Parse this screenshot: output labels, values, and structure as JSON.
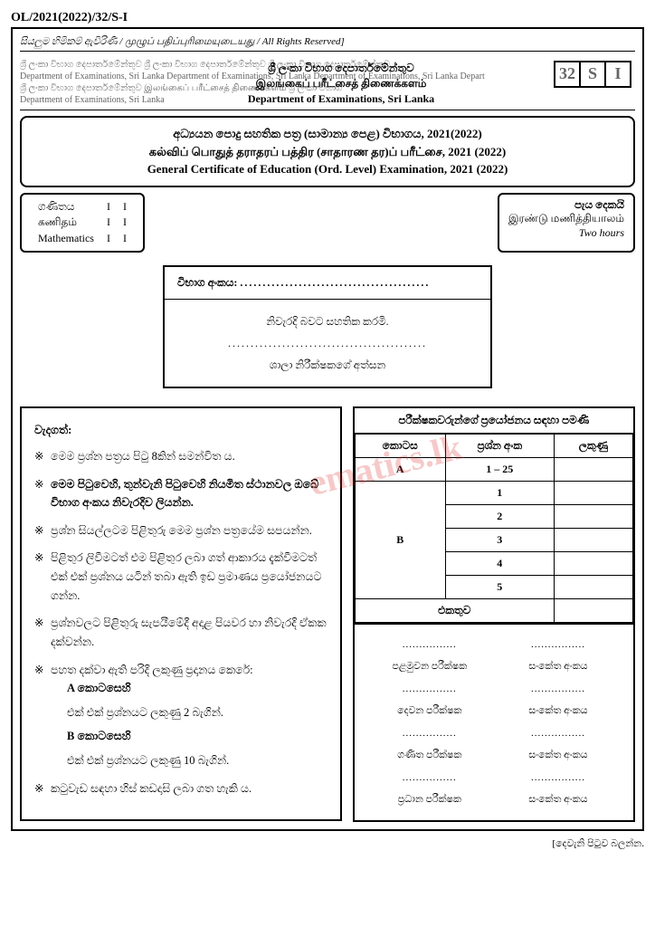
{
  "paper_code": "OL/2021(2022)/32/S-I",
  "rights": "සියලුම හිමිකම් ඇවිරිණි / முழுப் பதிப்புரிமையுடையது / All Rights Reserved]",
  "dept_bg": "ශ්‍රී ලංකා විභාග දෙපාර්තමේන්තුව ශ්‍රී ලංකා විභාග දෙපාර්තමේන්තුව ශ්‍රී ලංකා විභාග දෙපාර්තමේන්තුව\nDepartment of Examinations, Sri Lanka Department of Examinations, Sri Lanka Department of Examinations, Sri Lanka Depart\nශ්‍රී ලංකා විභාග දෙපාර්තමේන්තුව இலங்கைப் பரீட்சைத் திணைக்களம் ශ්‍රී ලංකා විභාග\nDepartment of Examinations, Sri Lanka",
  "dept_overlay_si": "ශ්‍රී ලංකා විභාග දෙපාර්තමේන්තුව",
  "dept_overlay_ta": "இலங்கைப் பரீட்சைத் திணைக்களம்",
  "dept_overlay_en": "Department of Examinations, Sri Lanka",
  "code_boxes": [
    "32",
    "S",
    "I"
  ],
  "title_si": "අධ්‍යයන පොදු සහතික පත්‍ර (සාමාන්‍ය පෙළ) විභාගය, 2021(2022)",
  "title_ta": "கல்விப் பொதுத் தராதரப் பத்திர (சாதாரண தர)ப் பரீட்சை, 2021 (2022)",
  "title_en": "General Certificate of Education (Ord. Level) Examination, 2021 (2022)",
  "subject": {
    "si": "ගණිතය",
    "ta": "கணிதம்",
    "en": "Mathematics",
    "col2": [
      "I",
      "I",
      "I"
    ],
    "col3": [
      "I",
      "I",
      "I"
    ]
  },
  "time": {
    "si": "පැය දෙකයි",
    "ta": "இரண்டு மணித்தியாலம்",
    "en": "Two hours"
  },
  "exam_no_label": "විභාග අංකය: ",
  "cert_line1": "නිවැරදි බවට සහතික කරමි.",
  "cert_line2": "ශාලා නිරීක්ෂකගේ අත්සන",
  "instructions_head": "වැදගත්:",
  "instructions": [
    "මෙම ප්‍රශ්න පත්‍රය පිටු 8කින් සමන්විත ය.",
    "මෙම පිටුවෙහි, තුන්වැනි පිටුවෙහි නියමිත ස්ථානවල ඔබේ විභාග අංකය නිවැරදිව ලියන්න.",
    "ප්‍රශ්න සියල්ලටම පිළිතුරු මෙම ප්‍රශ්න පත්‍රයේම සපයන්න.",
    "පිළිතුර ලිවීමටත් එම පිළිතුර ලබා ගත් ආකාරය දැක්වීමටත් එක් එක් ප්‍රශ්නය යටින් තබා ඇති ඉඩ ප්‍රමාණය ප්‍රයෝජනයට ගන්න.",
    "ප්‍රශ්නවලට පිළිතුරු සැපයීමේදී අදාළ පියවර හා නිවැරදි ඒකක දක්වන්න.",
    "පහත දක්වා ඇති පරිදි ලකුණු ප්‍රදානය කෙරේ:",
    "කටුවැඩ සඳහා හිස් කඩදාසි ලබා ගත හැකි ය."
  ],
  "section_a_label": "A කොටසෙහි",
  "section_a_marks": "එක් එක් ප්‍රශ්නයට ලකුණු 2 බැගින්.",
  "section_b_label": "B කොටසෙහි",
  "section_b_marks": "එක් එක් ප්‍රශ්නයට ලකුණු 10 බැගින්.",
  "marks_title": "පරීක්ෂකවරුන්ගේ ප්‍රයෝජනය සඳහා පමණි",
  "marks_headers": [
    "කොටස",
    "ප්‍රශ්න අංක",
    "ලකුණු"
  ],
  "marks_rows": [
    {
      "section": "A",
      "q": "1 – 25",
      "rowspan": 1
    },
    {
      "section": "B",
      "q": [
        "1",
        "2",
        "3",
        "4",
        "5"
      ],
      "rowspan": 5
    }
  ],
  "total_label": "එකතුව",
  "examiners": [
    {
      "left": "පළමුවන පරීක්ෂක",
      "right": "සංකේත අංකය"
    },
    {
      "left": "දෙවන පරීක්ෂක",
      "right": "සංකේත අංකය"
    },
    {
      "left": "ගණිත පරීක්ෂක",
      "right": "සංකේත අංකය"
    },
    {
      "left": "ප්‍රධාන පරීක්ෂක",
      "right": "සංකේත අංකය"
    }
  ],
  "watermark": "ematics.lk",
  "footer": "[දෙවැනි පිටුව බලන්න."
}
